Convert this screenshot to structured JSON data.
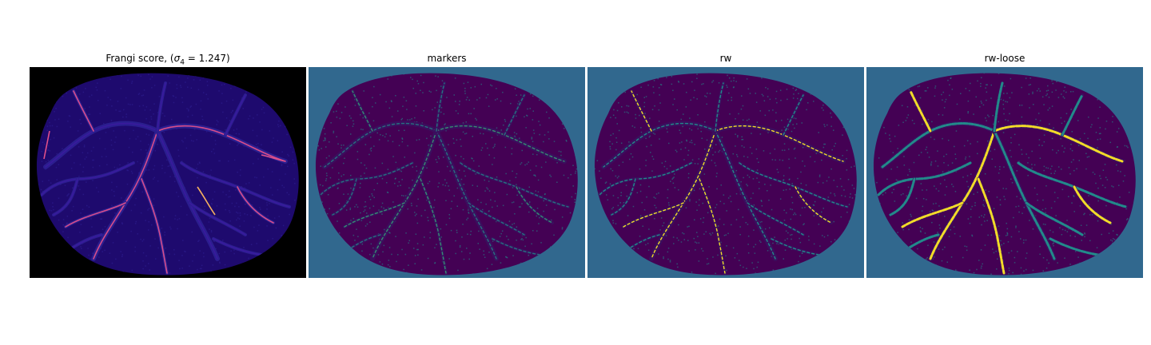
{
  "panels": [
    {
      "title_prefix": "Frangi score, (",
      "title_sigma": "σ",
      "title_sub": "4",
      "title_suffix": " = 1.247)",
      "background": "#000000",
      "blob": "#1e0a6e",
      "vessel": "#3a1a9e",
      "highlight": "#e0508a",
      "bright": "#f5b060"
    },
    {
      "title": "markers",
      "background": "#31688e",
      "blob": "#440154",
      "vessel": "#21918c",
      "highlight": "#35b779",
      "bright": "#21918c"
    },
    {
      "title": "rw",
      "background": "#31688e",
      "blob": "#440154",
      "vessel": "#21918c",
      "highlight": "#fde725",
      "bright": "#35b779"
    },
    {
      "title": "rw-loose",
      "background": "#31688e",
      "blob": "#440154",
      "vessel": "#21918c",
      "highlight": "#fde725",
      "bright": "#fde725"
    }
  ]
}
